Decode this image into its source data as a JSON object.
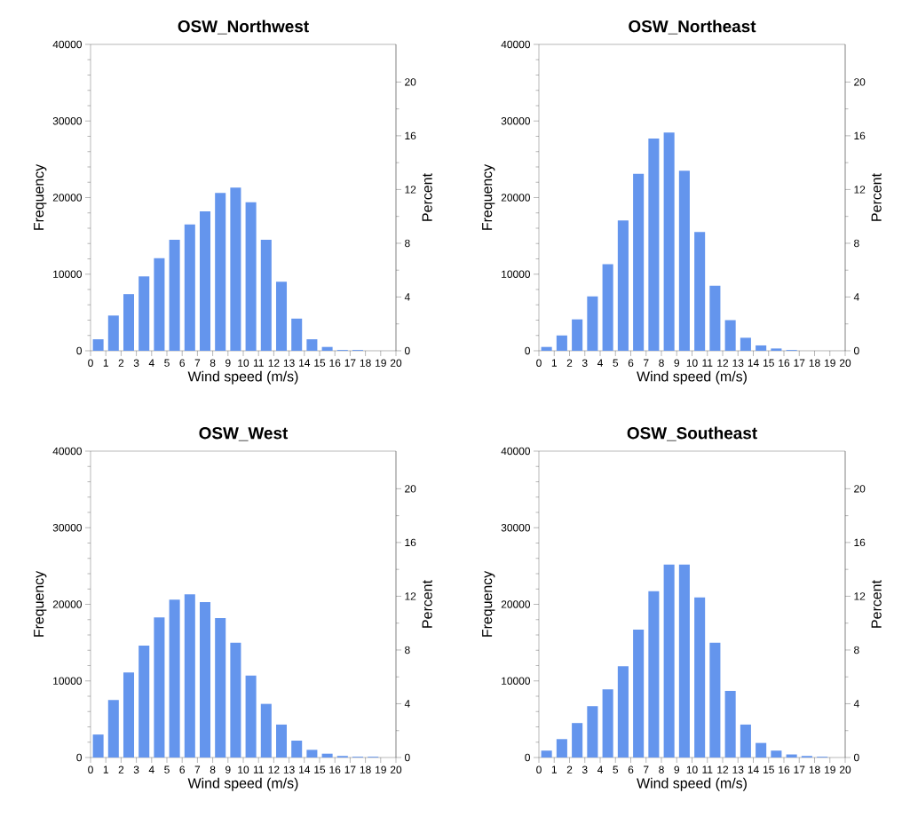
{
  "chart_data": [
    {
      "type": "histogram",
      "title": "OSW_Northwest",
      "xlabel": "Wind speed (m/s)",
      "ylabel": "Frequency",
      "y2label": "Percent",
      "color": "#6495ed",
      "bins": [
        0,
        1,
        2,
        3,
        4,
        5,
        6,
        7,
        8,
        9,
        10,
        11,
        12,
        13,
        14,
        15,
        16,
        17,
        18,
        19,
        20
      ],
      "values": [
        1500,
        4600,
        7400,
        9700,
        12100,
        14500,
        16500,
        18200,
        20600,
        21300,
        19400,
        14500,
        9000,
        4200,
        1500,
        500,
        100,
        100,
        0,
        0
      ],
      "xlim": [
        0,
        20
      ],
      "xticks": [
        0,
        1,
        2,
        3,
        4,
        5,
        6,
        7,
        8,
        9,
        10,
        11,
        12,
        13,
        14,
        15,
        16,
        17,
        18,
        19,
        20
      ],
      "ylim": [
        0,
        40000
      ],
      "yticks": [
        0,
        10000,
        20000,
        30000,
        40000
      ],
      "y2lim": [
        0,
        22.8
      ],
      "y2ticks": [
        0,
        4,
        8,
        12,
        16,
        20
      ]
    },
    {
      "type": "histogram",
      "title": "OSW_Northeast",
      "xlabel": "Wind speed (m/s)",
      "ylabel": "Frequency",
      "y2label": "Percent",
      "color": "#6495ed",
      "bins": [
        0,
        1,
        2,
        3,
        4,
        5,
        6,
        7,
        8,
        9,
        10,
        11,
        12,
        13,
        14,
        15,
        16,
        17,
        18,
        19,
        20
      ],
      "values": [
        500,
        2000,
        4100,
        7100,
        11300,
        17000,
        23100,
        27700,
        28500,
        23500,
        15500,
        8500,
        4000,
        1700,
        700,
        300,
        100,
        0,
        0,
        0
      ],
      "xlim": [
        0,
        20
      ],
      "xticks": [
        0,
        1,
        2,
        3,
        4,
        5,
        6,
        7,
        8,
        9,
        10,
        11,
        12,
        13,
        14,
        15,
        16,
        17,
        18,
        19,
        20
      ],
      "ylim": [
        0,
        40000
      ],
      "yticks": [
        0,
        10000,
        20000,
        30000,
        40000
      ],
      "y2lim": [
        0,
        22.8
      ],
      "y2ticks": [
        0,
        4,
        8,
        12,
        16,
        20
      ]
    },
    {
      "type": "histogram",
      "title": "OSW_West",
      "xlabel": "Wind speed (m/s)",
      "ylabel": "Frequency",
      "y2label": "Percent",
      "color": "#6495ed",
      "bins": [
        0,
        1,
        2,
        3,
        4,
        5,
        6,
        7,
        8,
        9,
        10,
        11,
        12,
        13,
        14,
        15,
        16,
        17,
        18,
        19,
        20
      ],
      "values": [
        3000,
        7500,
        11100,
        14600,
        18300,
        20600,
        21300,
        20300,
        18200,
        15000,
        10700,
        7000,
        4300,
        2200,
        1000,
        500,
        200,
        100,
        100,
        0
      ],
      "xlim": [
        0,
        20
      ],
      "xticks": [
        0,
        1,
        2,
        3,
        4,
        5,
        6,
        7,
        8,
        9,
        10,
        11,
        12,
        13,
        14,
        15,
        16,
        17,
        18,
        19,
        20
      ],
      "ylim": [
        0,
        40000
      ],
      "yticks": [
        0,
        10000,
        20000,
        30000,
        40000
      ],
      "y2lim": [
        0,
        22.8
      ],
      "y2ticks": [
        0,
        4,
        8,
        12,
        16,
        20
      ]
    },
    {
      "type": "histogram",
      "title": "OSW_Southeast",
      "xlabel": "Wind speed (m/s)",
      "ylabel": "Frequency",
      "y2label": "Percent",
      "color": "#6495ed",
      "bins": [
        0,
        1,
        2,
        3,
        4,
        5,
        6,
        7,
        8,
        9,
        10,
        11,
        12,
        13,
        14,
        15,
        16,
        17,
        18,
        19,
        20
      ],
      "values": [
        900,
        2400,
        4500,
        6700,
        8900,
        11900,
        16700,
        21700,
        25200,
        25200,
        20900,
        15000,
        8700,
        4300,
        1900,
        900,
        400,
        200,
        100,
        0
      ],
      "xlim": [
        0,
        20
      ],
      "xticks": [
        0,
        1,
        2,
        3,
        4,
        5,
        6,
        7,
        8,
        9,
        10,
        11,
        12,
        13,
        14,
        15,
        16,
        17,
        18,
        19,
        20
      ],
      "ylim": [
        0,
        40000
      ],
      "yticks": [
        0,
        10000,
        20000,
        30000,
        40000
      ],
      "y2lim": [
        0,
        22.8
      ],
      "y2ticks": [
        0,
        4,
        8,
        12,
        16,
        20
      ]
    }
  ]
}
